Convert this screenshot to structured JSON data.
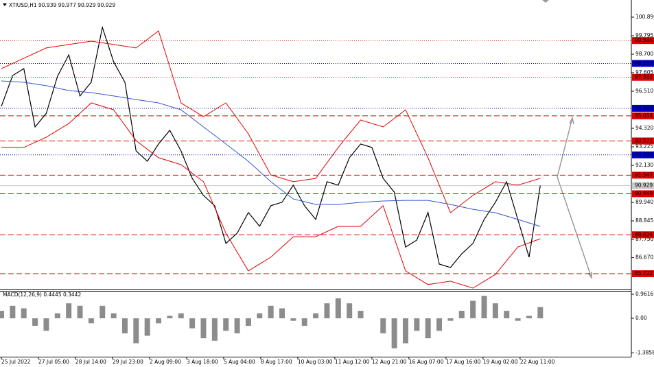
{
  "chart_data": [
    {
      "type": "line",
      "title": "XTIUSD,H1  90.939 90.977 90.929 90.929",
      "xlim": [
        -1.22,
        561.1
      ],
      "xticks": [
        {
          "value": 0,
          "label": "25 Jul 2022"
        },
        {
          "value": 33,
          "label": "27 Jul 05:00"
        },
        {
          "value": 66,
          "label": "28 Jul 14:00"
        },
        {
          "value": 99,
          "label": "29 Jul 23:00"
        },
        {
          "value": 132,
          "label": "2 Aug 09:00"
        },
        {
          "value": 165,
          "label": "3 Aug 18:00"
        },
        {
          "value": 198,
          "label": "5 Aug 04:00"
        },
        {
          "value": 231,
          "label": "8 Aug 17:00"
        },
        {
          "value": 264,
          "label": "10 Aug 03:00"
        },
        {
          "value": 297,
          "label": "11 Aug 12:00"
        },
        {
          "value": 330,
          "label": "12 Aug 21:00"
        },
        {
          "value": 363,
          "label": "16 Aug 07:00"
        },
        {
          "value": 396,
          "label": "17 Aug 16:00"
        },
        {
          "value": 429,
          "label": "19 Aug 02:00"
        },
        {
          "value": 462,
          "label": "22 Aug 11:00"
        }
      ],
      "ylim": [
        84.79,
        101.904
      ],
      "yticks": [
        {
          "value": 100.89,
          "label": "100.890"
        },
        {
          "value": 99.795,
          "label": "99.795"
        },
        {
          "value": 98.7,
          "label": "98.700"
        },
        {
          "value": 97.605,
          "label": "97.605"
        },
        {
          "value": 96.51,
          "label": "96.510"
        },
        {
          "value": 94.32,
          "label": "94.320"
        },
        {
          "value": 93.225,
          "label": "93.225"
        },
        {
          "value": 92.13,
          "label": "92.130"
        },
        {
          "value": 89.94,
          "label": "89.940"
        },
        {
          "value": 88.845,
          "label": "88.845"
        },
        {
          "value": 87.75,
          "label": "87.750"
        },
        {
          "value": 86.67,
          "label": "86.670"
        }
      ],
      "levels": [
        {
          "value": 99.506,
          "label": "99.506",
          "color": "#e00000",
          "style": "dotted"
        },
        {
          "value": 98.153,
          "label": "98.153",
          "color": "#0000c8",
          "style": "dotted"
        },
        {
          "value": 97.332,
          "label": "97.332",
          "color": "#e00000",
          "style": "dotted"
        },
        {
          "value": 95.5,
          "label": "95.500",
          "color": "#0000c8",
          "style": "dotted"
        },
        {
          "value": 95.054,
          "label": "95.054",
          "color": "#e00000",
          "style": "dashed"
        },
        {
          "value": 93.571,
          "label": "93.571",
          "color": "#e00000",
          "style": "dashed"
        },
        {
          "value": 92.748,
          "label": "92.748",
          "color": "#0000c8",
          "style": "dotted"
        },
        {
          "value": 91.547,
          "label": "91.547",
          "color": "#e00000",
          "style": "dashed"
        },
        {
          "value": 90.929,
          "label": "90.929",
          "color": "#c8c8c8",
          "style": "solid"
        },
        {
          "value": 90.449,
          "label": "90.449",
          "color": "#e00000",
          "style": "dashed"
        },
        {
          "value": 88.024,
          "label": "88.024",
          "color": "#e00000",
          "style": "dashed"
        },
        {
          "value": 85.722,
          "label": "85.722",
          "color": "#e00000",
          "style": "dashed"
        }
      ],
      "series": [
        {
          "color": "#000000",
          "x": [
            0,
            10,
            20,
            30,
            40,
            50,
            60,
            70,
            80,
            90,
            100,
            110,
            120,
            130,
            140,
            150,
            160,
            170,
            180,
            190,
            200,
            210,
            220,
            230,
            240,
            250,
            260,
            270,
            280,
            290,
            300,
            310,
            320,
            330,
            340,
            350,
            360,
            370,
            380,
            390,
            400,
            410,
            420,
            430,
            440,
            450,
            460,
            470,
            480
          ],
          "values": [
            95.62,
            97.44,
            97.85,
            94.4,
            95.2,
            97.4,
            98.66,
            96.23,
            97.04,
            100.28,
            98.25,
            97.04,
            92.98,
            92.37,
            93.39,
            94.2,
            92.98,
            91.36,
            90.35,
            89.74,
            87.51,
            88.12,
            89.34,
            88.53,
            89.74,
            89.95,
            90.96,
            89.74,
            88.93,
            91.16,
            90.96,
            92.58,
            93.39,
            93.19,
            91.36,
            90.54,
            87.3,
            87.71,
            89.34,
            86.29,
            86.09,
            86.9,
            87.51,
            88.93,
            89.95,
            91.16,
            88.93,
            86.7,
            90.93
          ]
        },
        {
          "color": "#e00000",
          "x": [
            0,
            20,
            40,
            60,
            80,
            100,
            120,
            140,
            160,
            180,
            200,
            220,
            240,
            260,
            280,
            300,
            320,
            340,
            360,
            380,
            400,
            420,
            440,
            460,
            480
          ],
          "values": [
            97.85,
            98.46,
            99.07,
            99.27,
            99.47,
            99.27,
            99.07,
            100.08,
            95.82,
            95.01,
            95.82,
            93.99,
            91.56,
            91.16,
            91.36,
            93.19,
            94.81,
            94.4,
            95.41,
            92.58,
            89.33,
            90.35,
            91.16,
            90.96,
            91.36
          ]
        },
        {
          "color": "#e00000",
          "x": [
            0,
            20,
            40,
            60,
            80,
            100,
            120,
            140,
            160,
            180,
            200,
            220,
            240,
            260,
            280,
            300,
            320,
            340,
            360,
            380,
            400,
            420,
            440,
            460,
            480
          ],
          "values": [
            93.19,
            93.19,
            93.79,
            94.6,
            95.82,
            95.41,
            93.59,
            92.58,
            92.17,
            91.16,
            88.12,
            85.89,
            86.7,
            87.91,
            87.91,
            88.52,
            88.52,
            89.74,
            85.89,
            85.08,
            85.28,
            84.87,
            85.68,
            87.3,
            87.79
          ]
        },
        {
          "color": "#3355cc",
          "x": [
            0,
            20,
            40,
            60,
            80,
            100,
            120,
            140,
            160,
            180,
            200,
            220,
            240,
            260,
            280,
            300,
            320,
            340,
            360,
            380,
            400,
            420,
            440,
            460,
            480
          ],
          "values": [
            97.12,
            97.04,
            96.84,
            96.55,
            96.43,
            96.23,
            96.02,
            95.82,
            95.41,
            94.4,
            93.39,
            92.37,
            91.16,
            90.14,
            89.82,
            89.82,
            89.94,
            90.02,
            90.06,
            90.06,
            89.82,
            89.53,
            89.33,
            88.93,
            88.52
          ]
        }
      ]
    },
    {
      "type": "bar",
      "title": "MACD(12,26,9) 0.4445 0.3442",
      "color": "#8c8c8c",
      "xlim": [
        -1.22,
        561.1
      ],
      "ylim": [
        -1.538,
        1.099
      ],
      "yticks": [
        0.9616,
        {
          "value": 0,
          "label": "0.00"
        },
        -1.3858
      ],
      "x": [
        0,
        10,
        20,
        30,
        40,
        50,
        60,
        70,
        80,
        90,
        100,
        110,
        120,
        130,
        140,
        150,
        160,
        170,
        180,
        190,
        200,
        210,
        220,
        230,
        240,
        250,
        260,
        270,
        280,
        290,
        300,
        310,
        320,
        330,
        340,
        350,
        360,
        370,
        380,
        390,
        400,
        410,
        420,
        430,
        440,
        450,
        460,
        470,
        480
      ],
      "values": [
        0.3,
        0.5,
        0.4,
        -0.3,
        -0.5,
        0.2,
        0.6,
        0.5,
        -0.2,
        0.5,
        0.2,
        -0.6,
        -1.0,
        -0.7,
        -0.2,
        0.1,
        0.2,
        -0.4,
        -0.8,
        -0.9,
        -0.5,
        -0.6,
        -0.3,
        0.2,
        0.5,
        0.4,
        -0.1,
        -0.3,
        0.2,
        0.6,
        0.8,
        0.6,
        0.3,
        0.0,
        -0.6,
        -1.2,
        -1.0,
        -0.5,
        -0.8,
        -0.5,
        -0.1,
        0.3,
        0.7,
        0.9,
        0.6,
        0.3,
        -0.1,
        0.1,
        0.45
      ]
    }
  ]
}
